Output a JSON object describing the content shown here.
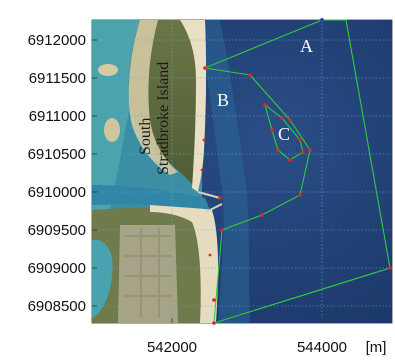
{
  "map": {
    "x_ticks": [
      "542000",
      "544000"
    ],
    "x_unit": "[m]",
    "y_ticks": [
      "6912000",
      "6911500",
      "6911000",
      "6910500",
      "6910000",
      "6909500",
      "6909000",
      "6908500"
    ],
    "zones": {
      "a": "A",
      "b": "B",
      "c": "C"
    },
    "island_label_line1": "South",
    "island_label_line2": "Stradbroke Island",
    "colors": {
      "boundary": "#2ecc40",
      "nodes": "#e8231e",
      "grid": "#6aa6e0",
      "deep_water": "#1f3f73",
      "shallow_water": "#2f7fa3",
      "sand": "#e6dcc0",
      "vegetation": "#5c6b3a"
    }
  }
}
